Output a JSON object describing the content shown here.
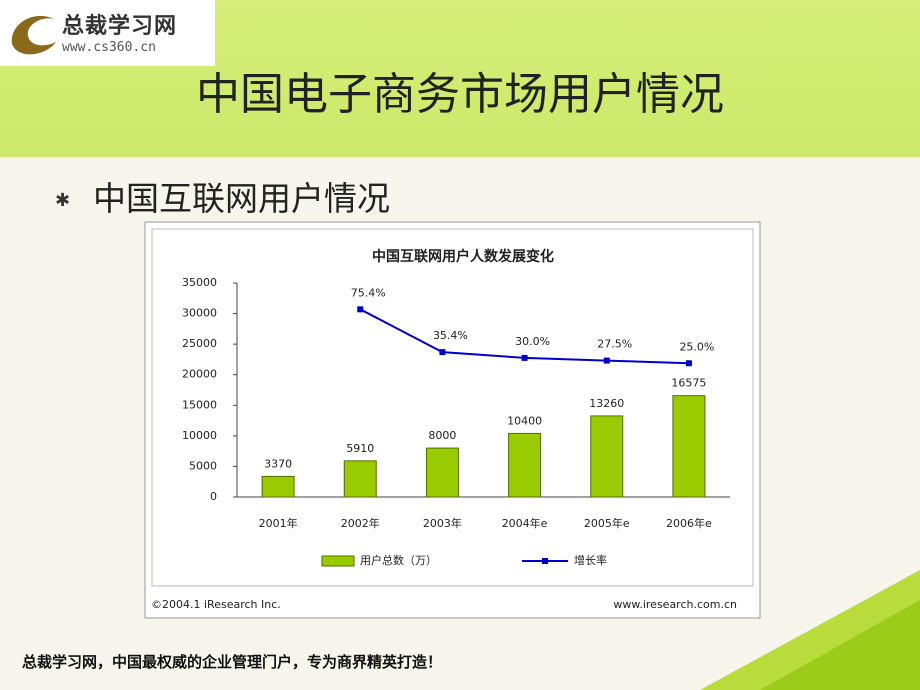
{
  "logo": {
    "name": "总裁学习网",
    "url": "www.cs360.cn"
  },
  "title": "中国电子商务市场用户情况",
  "bullet": "中国互联网用户情况",
  "footer": "总裁学习网，中国最权威的企业管理门户，专为商界精英打造！",
  "chart_data": {
    "type": "bar_line",
    "title": "中国互联网用户人数发展变化",
    "categories": [
      "2001年",
      "2002年",
      "2003年",
      "2004年e",
      "2005年e",
      "2006年e"
    ],
    "series": [
      {
        "name": "用户总数（万）",
        "type": "bar",
        "color": "#99cc00",
        "values": [
          3370,
          5910,
          8000,
          10400,
          13260,
          16575
        ]
      },
      {
        "name": "增长率",
        "type": "line",
        "axis": "y2",
        "color": "#0000cc",
        "values": [
          null,
          75.4,
          35.4,
          30.0,
          27.5,
          25.0
        ],
        "value_labels": [
          null,
          "75.4%",
          "35.4%",
          "30.0%",
          "27.5%",
          "25.0%"
        ]
      }
    ],
    "ylim": [
      0,
      35000
    ],
    "yticks": [
      0,
      5000,
      10000,
      15000,
      20000,
      25000,
      30000,
      35000
    ],
    "y2lim": [
      -100,
      100
    ],
    "source": "©2004.1 iResearch Inc.",
    "source_url": "www.iresearch.com.cn"
  }
}
